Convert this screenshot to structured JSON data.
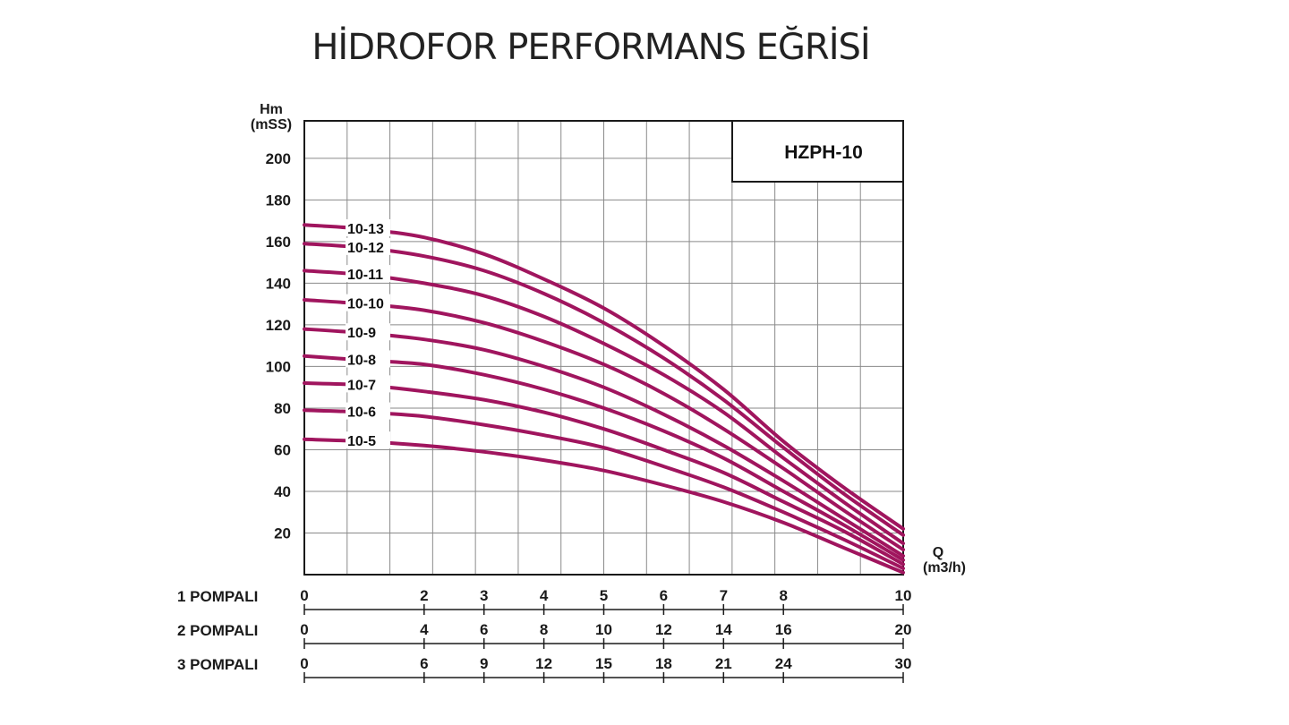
{
  "title": "HİDROFOR PERFORMANS EĞRİSİ",
  "chart_data": {
    "type": "line",
    "model_label": "HZPH-10",
    "ylabel": "Hm",
    "ylabel_unit": "(mSS)",
    "xlabel": "Q",
    "xlabel_unit": "(m3/h)",
    "ylim": [
      0,
      218
    ],
    "y_ticks": [
      20,
      40,
      60,
      80,
      100,
      120,
      140,
      160,
      180,
      200
    ],
    "grid": true,
    "curve_color": "#a0155e",
    "x_scales": [
      {
        "name": "1 POMPALI",
        "ticks": [
          [
            "0",
            0
          ],
          [
            "2",
            2
          ],
          [
            "3",
            3
          ],
          [
            "4",
            4
          ],
          [
            "5",
            5
          ],
          [
            "6",
            6
          ],
          [
            "7",
            7
          ],
          [
            "8",
            8
          ],
          [
            "10",
            10
          ]
        ]
      },
      {
        "name": "2 POMPALI",
        "ticks": [
          [
            "0",
            0
          ],
          [
            "4",
            2
          ],
          [
            "6",
            3
          ],
          [
            "8",
            4
          ],
          [
            "10",
            5
          ],
          [
            "12",
            6
          ],
          [
            "14",
            7
          ],
          [
            "16",
            8
          ],
          [
            "20",
            10
          ]
        ]
      },
      {
        "name": "3 POMPALI",
        "ticks": [
          [
            "0",
            0
          ],
          [
            "6",
            2
          ],
          [
            "9",
            3
          ],
          [
            "12",
            4
          ],
          [
            "15",
            5
          ],
          [
            "18",
            6
          ],
          [
            "21",
            7
          ],
          [
            "24",
            8
          ],
          [
            "30",
            10
          ]
        ]
      }
    ],
    "x": [
      0,
      1,
      2,
      3,
      4,
      5,
      6,
      7,
      8,
      9,
      10
    ],
    "series": [
      {
        "name": "10-13",
        "values": [
          168,
          166,
          162,
          154,
          142,
          128,
          110,
          89,
          64,
          42,
          22
        ]
      },
      {
        "name": "10-12",
        "values": [
          159,
          157,
          153,
          146,
          135,
          121,
          104,
          84,
          61,
          39,
          19
        ]
      },
      {
        "name": "10-11",
        "values": [
          146,
          144,
          140,
          134,
          124,
          111,
          96,
          78,
          56,
          35,
          15
        ]
      },
      {
        "name": "10-10",
        "values": [
          132,
          130,
          127,
          121,
          112,
          101,
          87,
          70,
          51,
          31,
          12
        ]
      },
      {
        "name": "10-9",
        "values": [
          118,
          116,
          113,
          108,
          100,
          90,
          77,
          62,
          45,
          27,
          9
        ]
      },
      {
        "name": "10-8",
        "values": [
          105,
          103,
          101,
          96,
          89,
          80,
          69,
          56,
          40,
          24,
          7
        ]
      },
      {
        "name": "10-7",
        "values": [
          92,
          91,
          88,
          84,
          78,
          70,
          60,
          49,
          35,
          21,
          5
        ]
      },
      {
        "name": "10-6",
        "values": [
          79,
          78,
          76,
          72,
          67,
          61,
          52,
          42,
          30,
          17,
          3
        ]
      },
      {
        "name": "10-5",
        "values": [
          65,
          64,
          62,
          59,
          55,
          50,
          43,
          35,
          25,
          13,
          1
        ]
      }
    ]
  }
}
